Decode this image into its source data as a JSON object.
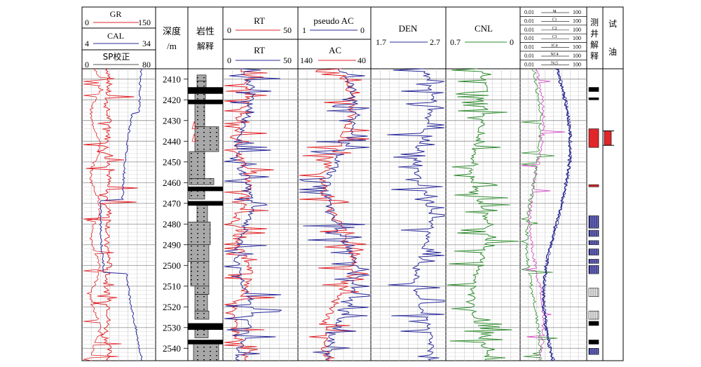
{
  "header": {
    "gr": {
      "label": "GR",
      "min": "0",
      "max": "150"
    },
    "cal": {
      "label": "CAL",
      "min": "4",
      "max": "34"
    },
    "sp": {
      "label": "SP校正",
      "min": "0",
      "max": "80"
    },
    "depth_title_line1": "深度",
    "depth_title_line2": "/m",
    "lith_title_line1": "岩性",
    "lith_title_line2": "解释",
    "rt_top": {
      "label": "RT",
      "min": "0",
      "max": "50"
    },
    "rt_bottom": {
      "label": "RT",
      "min": "0",
      "max": "50"
    },
    "pseudo_ac": {
      "label": "pseudo AC",
      "min": "1",
      "max": "0"
    },
    "ac": {
      "label": "AC",
      "min": "140",
      "max": "40"
    },
    "den": {
      "label": "DEN",
      "min": "1.7",
      "max": "2.7"
    },
    "cnl": {
      "label": "CNL",
      "min": "0.7",
      "max": "0"
    },
    "gas_scales": [
      {
        "label": "tg",
        "min": "0.01",
        "max": "100"
      },
      {
        "label": "C1",
        "min": "0.01",
        "max": "100"
      },
      {
        "label": "C2",
        "min": "0.01",
        "max": "100"
      },
      {
        "label": "C3",
        "min": "0.01",
        "max": "100"
      },
      {
        "label": "IC4",
        "min": "0.01",
        "max": "100"
      },
      {
        "label": "NC4",
        "min": "0.01",
        "max": "100"
      },
      {
        "label": "Nc5",
        "min": "0.01",
        "max": "100"
      }
    ],
    "log_interp_title": "测井解释",
    "oil_test_title": "试油"
  },
  "depth_ticks": [
    "2410",
    "2420",
    "2430",
    "2440",
    "2450",
    "2460",
    "2470",
    "2480",
    "2490",
    "2500",
    "2510",
    "2520",
    "2530",
    "2540"
  ],
  "colors": {
    "red": "#e0262b",
    "blue": "#2b2b9a",
    "green": "#2e8b2e",
    "magenta": "#d040c0",
    "navy": "#2a2a8c",
    "black": "#000000",
    "sand": "#a8a8a8"
  }
}
